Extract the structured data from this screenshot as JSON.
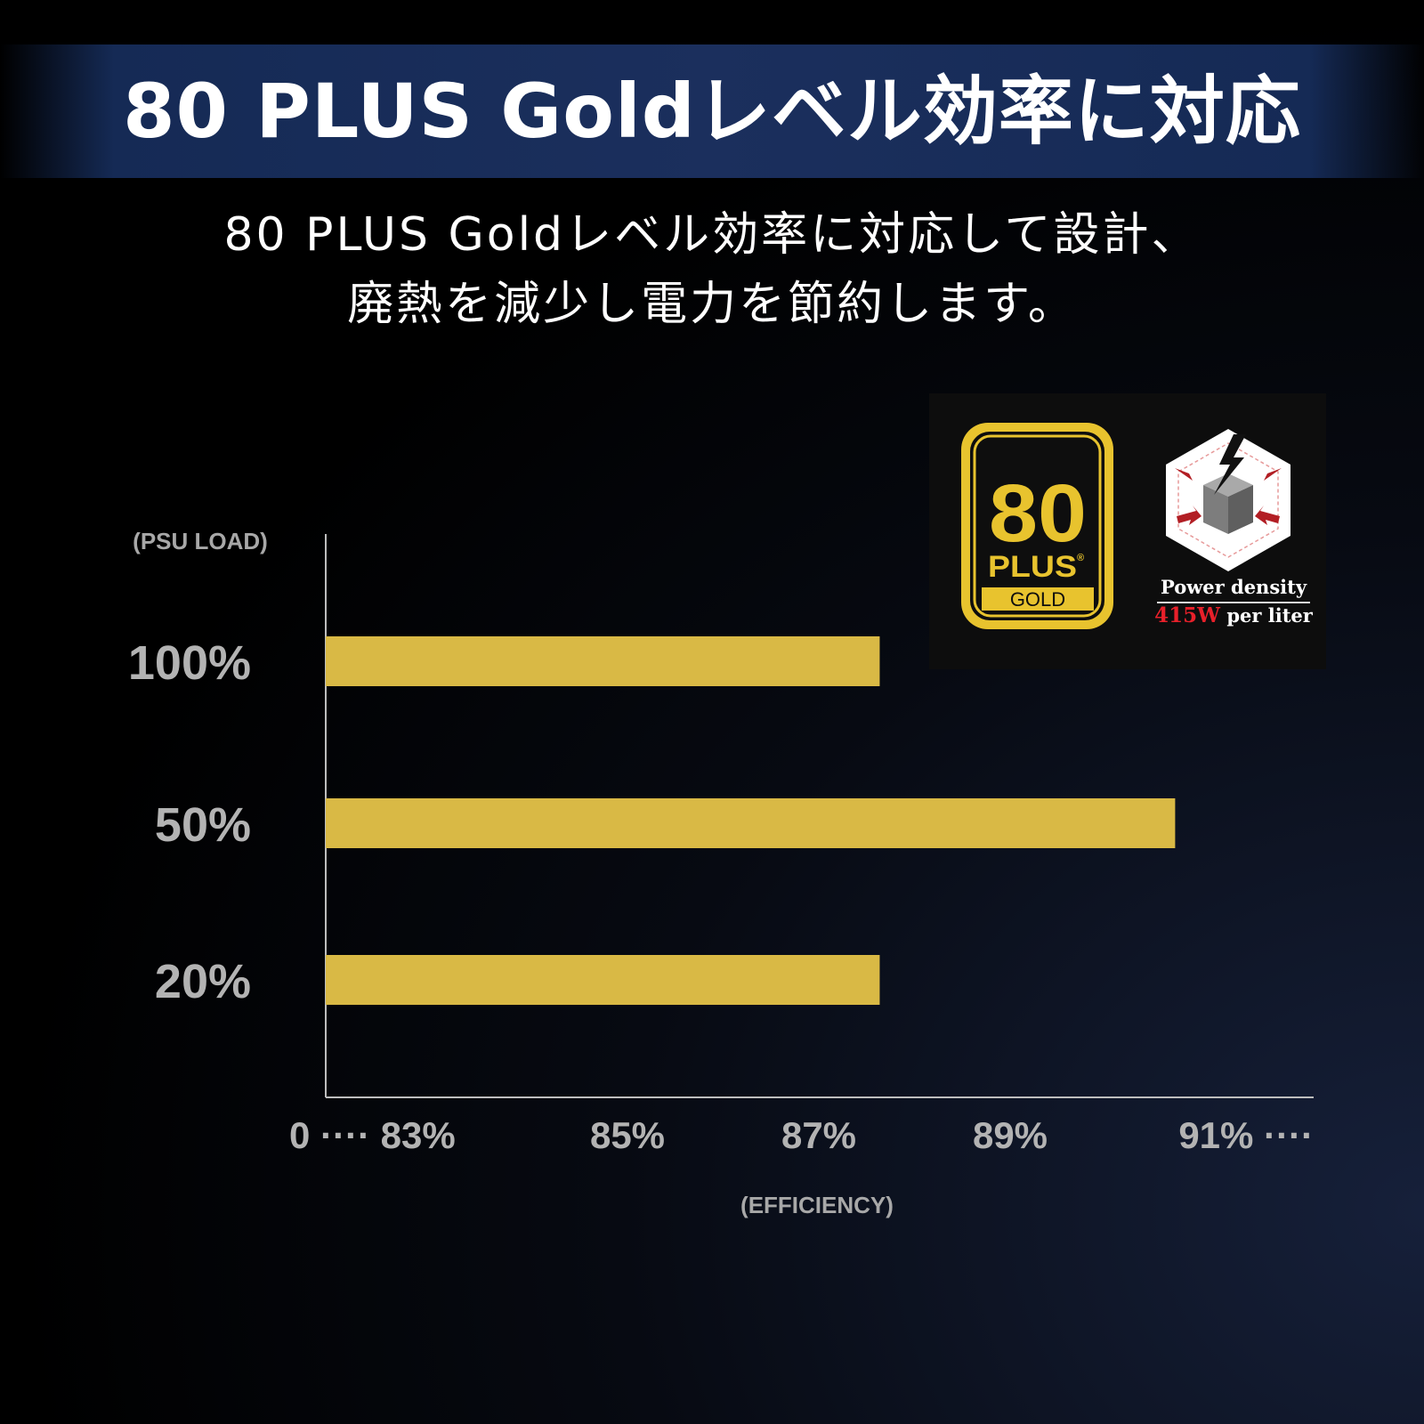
{
  "banner": {
    "title": "80 PLUS Goldレベル効率に対応"
  },
  "subtitle": {
    "line1": "80 PLUS Goldレベル効率に対応して設計、",
    "line2": "廃熱を減少し電力を節約します。"
  },
  "logos": {
    "badge": {
      "number": "80",
      "plus": "PLUS",
      "registered": "®",
      "tier": "GOLD"
    },
    "power_density": {
      "title": "Power density",
      "value": "415W",
      "unit": "per liter"
    }
  },
  "colors": {
    "bar": "#d9b945",
    "banner": "#1b2f5d",
    "badge_gold": "#e8c32e",
    "accent_red": "#e8202a"
  },
  "chart_data": {
    "type": "bar",
    "orientation": "horizontal",
    "ylabel": "(PSU LOAD)",
    "xlabel": "(EFFICIENCY)",
    "categories": [
      "100%",
      "50%",
      "20%"
    ],
    "values": [
      87,
      90.2,
      87
    ],
    "x_tick_labels": [
      "0 ···· 83%",
      "85%",
      "87%",
      "89%",
      "91% ····"
    ],
    "x_ticks": [
      81,
      83,
      85,
      87,
      89,
      91
    ],
    "xlim": [
      81,
      91.7
    ],
    "grid": false,
    "legend": "none"
  }
}
